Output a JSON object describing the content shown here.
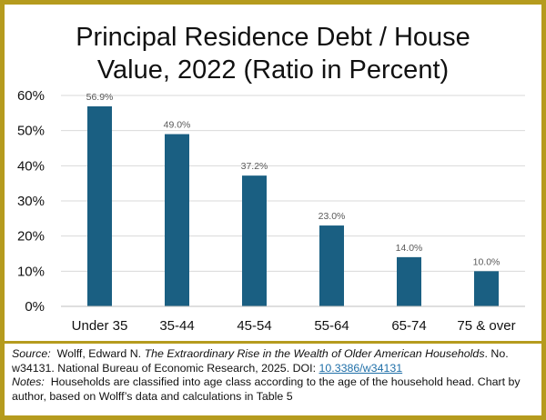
{
  "chart_data": {
    "type": "bar",
    "title_lines": [
      "Principal Residence Debt / House",
      "Value, 2022 (Ratio in Percent)"
    ],
    "categories": [
      "Under 35",
      "35-44",
      "45-54",
      "55-64",
      "65-74",
      "75 & over"
    ],
    "values": [
      56.9,
      49.0,
      37.2,
      23.0,
      14.0,
      10.0
    ],
    "data_labels": [
      "56.9%",
      "49.0%",
      "37.2%",
      "23.0%",
      "14.0%",
      "10.0%"
    ],
    "y_ticks": [
      0,
      10,
      20,
      30,
      40,
      50,
      60
    ],
    "y_tick_labels": [
      "0%",
      "10%",
      "20%",
      "30%",
      "40%",
      "50%",
      "60%"
    ],
    "ylim": [
      0,
      60
    ],
    "xlabel": "",
    "ylabel": "",
    "grid": true,
    "bar_color": "#1a5f82",
    "grid_color": "#d9d9d9"
  },
  "frame_color": "#b59b1e",
  "source": {
    "label": "Source:",
    "author": "Wolff, Edward N.",
    "book_title": "The Extraordinary Rise in the Wealth of Older American Households",
    "rest": ". No. w34131. National Bureau of Economic Research, 2025. DOI:",
    "doi": "10.3386/w34131"
  },
  "notes": {
    "label": "Notes:",
    "text": "Households are classified into age class according to the age of the household head. Chart by author, based on Wolff’s data and calculations in Table 5"
  }
}
